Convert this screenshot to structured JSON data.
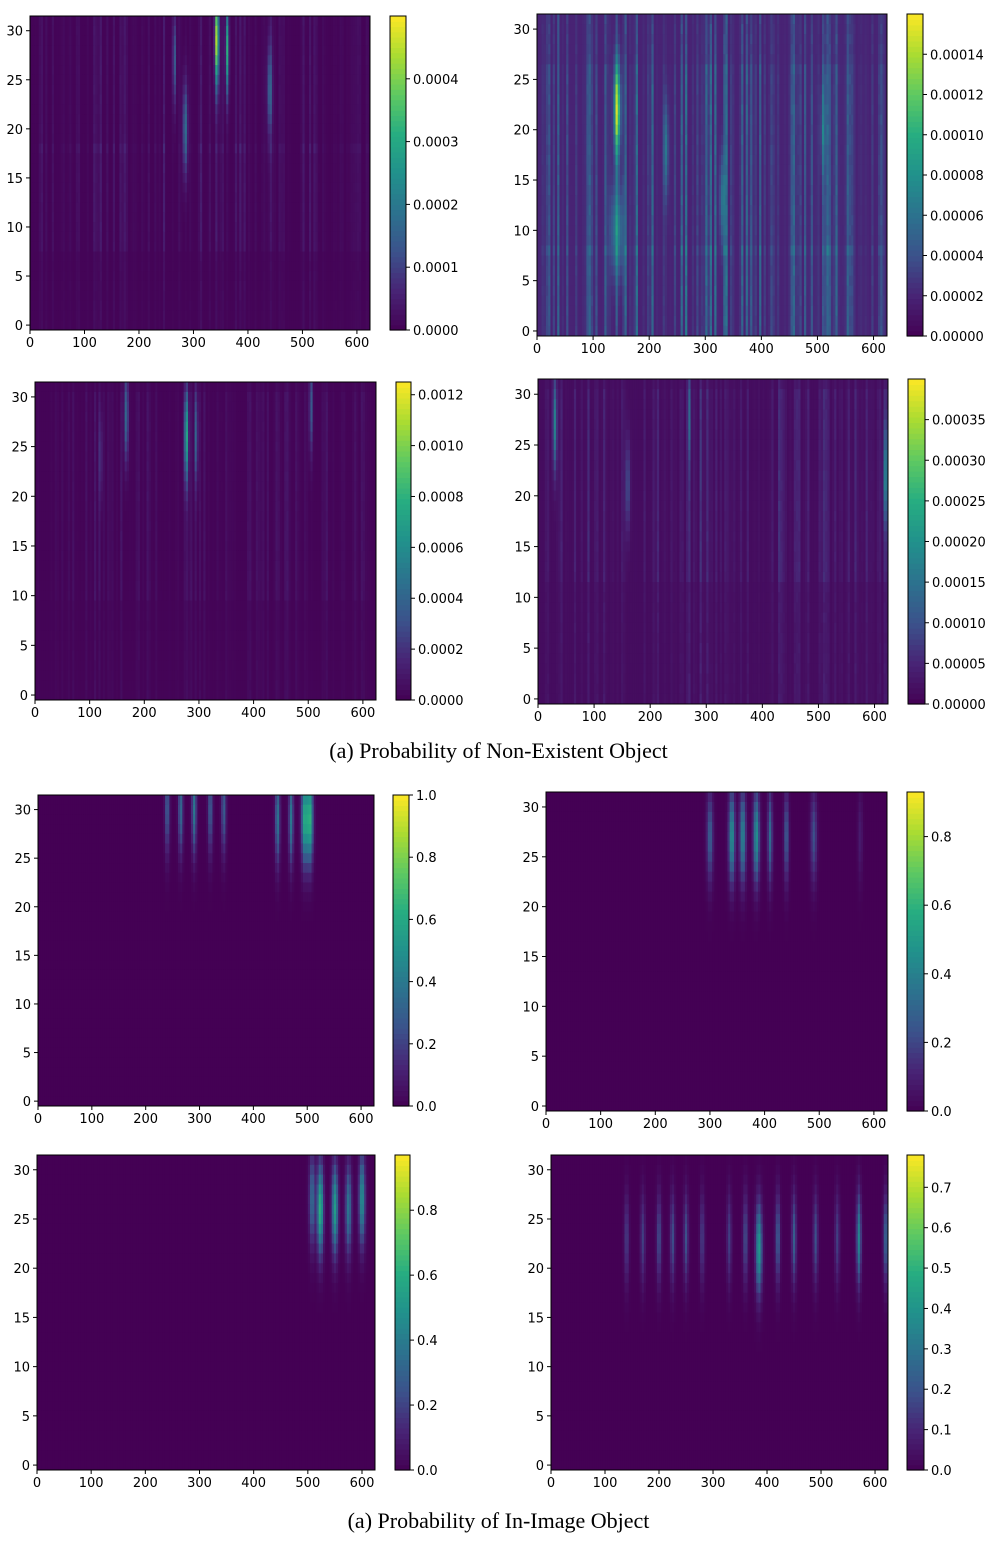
{
  "figure": {
    "captions": [
      "(a) Probability of Non-Existent Object",
      "(a) Probability of In-Image Object"
    ],
    "colormap": "viridis",
    "colors": [
      "#440154",
      "#3b528b",
      "#21918c",
      "#5ec962",
      "#fde725"
    ]
  },
  "chart_data": [
    {
      "type": "heatmap",
      "section": "(a) Probability of Non-Existent Object",
      "position": "top-left",
      "xlim": [
        0,
        624
      ],
      "ylim": [
        -0.5,
        31.5
      ],
      "xticks": [
        "0",
        "100",
        "200",
        "300",
        "400",
        "500",
        "600"
      ],
      "yticks": [
        "0",
        "5",
        "10",
        "15",
        "20",
        "25",
        "30"
      ],
      "vmin": 0,
      "vmax": 0.0005,
      "colorbar_ticks": [
        "0.0000",
        "0.0001",
        "0.0002",
        "0.0003",
        "0.0004"
      ],
      "colorbar_values": [
        0,
        0.0001,
        0.0002,
        0.0003,
        0.0004
      ],
      "base": 0.01,
      "noise": 0.05,
      "seed": 11,
      "bands": [
        [
          8,
          18,
          0.05
        ],
        [
          18,
          31,
          0.04
        ]
      ],
      "peaks": [
        [
          343,
          29,
          2.5,
          0.85
        ],
        [
          362,
          28,
          2,
          0.6
        ],
        [
          285,
          20,
          3,
          0.35
        ],
        [
          265,
          27,
          2,
          0.3
        ],
        [
          440,
          24,
          3,
          0.3
        ]
      ]
    },
    {
      "type": "heatmap",
      "section": "(a) Probability of Non-Existent Object",
      "position": "top-right",
      "xlim": [
        0,
        624
      ],
      "ylim": [
        -0.5,
        31.5
      ],
      "xticks": [
        "0",
        "100",
        "200",
        "300",
        "400",
        "500",
        "600"
      ],
      "yticks": [
        "0",
        "5",
        "10",
        "15",
        "20",
        "25",
        "30"
      ],
      "vmin": 0,
      "vmax": 0.00016,
      "colorbar_ticks": [
        "0.00000",
        "0.00002",
        "0.00004",
        "0.00006",
        "0.00008",
        "0.00010",
        "0.00012",
        "0.00014"
      ],
      "colorbar_values": [
        0,
        2e-05,
        4e-05,
        6e-05,
        8e-05,
        0.0001,
        0.00012,
        0.00014
      ],
      "base": 0.12,
      "noise": 0.2,
      "seed": 23,
      "bands": [
        [
          0,
          8,
          0.1
        ],
        [
          8,
          26,
          0.08
        ]
      ],
      "peaks": [
        [
          143,
          22,
          4,
          0.7
        ],
        [
          143,
          10,
          8,
          0.3
        ],
        [
          330,
          13,
          3,
          0.25
        ],
        [
          230,
          18,
          3,
          0.25
        ],
        [
          510,
          20,
          3,
          0.2
        ]
      ]
    },
    {
      "type": "heatmap",
      "section": "(a) Probability of Non-Existent Object",
      "position": "middle-left",
      "xlim": [
        0,
        624
      ],
      "ylim": [
        -0.5,
        31.5
      ],
      "xticks": [
        "0",
        "100",
        "200",
        "300",
        "400",
        "500",
        "600"
      ],
      "yticks": [
        "0",
        "5",
        "10",
        "15",
        "20",
        "25",
        "30"
      ],
      "vmin": 0,
      "vmax": 0.00125,
      "colorbar_ticks": [
        "0.0000",
        "0.0002",
        "0.0004",
        "0.0006",
        "0.0008",
        "0.0010",
        "0.0012"
      ],
      "colorbar_values": [
        0,
        0.0002,
        0.0004,
        0.0006,
        0.0008,
        0.001,
        0.0012
      ],
      "base": 0.01,
      "noise": 0.04,
      "seed": 37,
      "bands": [
        [
          10,
          30,
          0.03
        ]
      ],
      "peaks": [
        [
          167,
          28,
          2.5,
          0.35
        ],
        [
          277,
          26,
          2.5,
          0.55
        ],
        [
          295,
          26,
          2,
          0.3
        ],
        [
          505,
          29,
          2,
          0.3
        ],
        [
          120,
          24,
          2,
          0.15
        ]
      ]
    },
    {
      "type": "heatmap",
      "section": "(a) Probability of Non-Existent Object",
      "position": "middle-right",
      "xlim": [
        0,
        624
      ],
      "ylim": [
        -0.5,
        31.5
      ],
      "xticks": [
        "0",
        "100",
        "200",
        "300",
        "400",
        "500",
        "600"
      ],
      "yticks": [
        "0",
        "5",
        "10",
        "15",
        "20",
        "25",
        "30"
      ],
      "vmin": 0,
      "vmax": 0.0004,
      "colorbar_ticks": [
        "0.00000",
        "0.00005",
        "0.00010",
        "0.00015",
        "0.00020",
        "0.00025",
        "0.00030",
        "0.00035"
      ],
      "colorbar_values": [
        0,
        5e-05,
        0.0001,
        0.00015,
        0.0002,
        0.00025,
        0.0003,
        0.00035
      ],
      "base": 0.04,
      "noise": 0.09,
      "seed": 53,
      "bands": [
        [
          12,
          30,
          0.06
        ]
      ],
      "peaks": [
        [
          30,
          27,
          2.5,
          0.4
        ],
        [
          620,
          22,
          3,
          0.35
        ],
        [
          160,
          21,
          3,
          0.2
        ],
        [
          270,
          28,
          2,
          0.2
        ]
      ]
    },
    {
      "type": "heatmap",
      "section": "(a) Probability of In-Image Object",
      "position": "bottom-left-upper",
      "xlim": [
        0,
        624
      ],
      "ylim": [
        -0.5,
        31.5
      ],
      "xticks": [
        "0",
        "100",
        "200",
        "300",
        "400",
        "500",
        "600"
      ],
      "yticks": [
        "0",
        "5",
        "10",
        "15",
        "20",
        "25",
        "30"
      ],
      "vmin": 0,
      "vmax": 1.0,
      "colorbar_ticks": [
        "0.0",
        "0.2",
        "0.4",
        "0.6",
        "0.8",
        "1.0"
      ],
      "colorbar_values": [
        0,
        0.2,
        0.4,
        0.6,
        0.8,
        1.0
      ],
      "base": 0,
      "noise": 0,
      "seed": 71,
      "bands": [],
      "peaks": [
        [
          240,
          30,
          3,
          0.3
        ],
        [
          265,
          30,
          3,
          0.35
        ],
        [
          290,
          30,
          3,
          0.4
        ],
        [
          320,
          30,
          3,
          0.3
        ],
        [
          345,
          30,
          3,
          0.3
        ],
        [
          445,
          29,
          3,
          0.4
        ],
        [
          470,
          29,
          3,
          0.4
        ],
        [
          495,
          29,
          4,
          0.6
        ],
        [
          505,
          29,
          4,
          0.65
        ]
      ]
    },
    {
      "type": "heatmap",
      "section": "(a) Probability of In-Image Object",
      "position": "bottom-right-upper",
      "xlim": [
        0,
        624
      ],
      "ylim": [
        -0.5,
        31.5
      ],
      "xticks": [
        "0",
        "100",
        "200",
        "300",
        "400",
        "500",
        "600"
      ],
      "yticks": [
        "0",
        "5",
        "10",
        "15",
        "20",
        "25",
        "30"
      ],
      "vmin": 0,
      "vmax": 0.93,
      "colorbar_ticks": [
        "0.0",
        "0.2",
        "0.4",
        "0.6",
        "0.8"
      ],
      "colorbar_values": [
        0,
        0.2,
        0.4,
        0.6,
        0.8
      ],
      "base": 0,
      "noise": 0,
      "seed": 89,
      "bands": [],
      "peaks": [
        [
          300,
          27,
          4,
          0.3
        ],
        [
          340,
          27,
          4,
          0.5
        ],
        [
          360,
          27,
          4,
          0.45
        ],
        [
          385,
          27,
          4,
          0.5
        ],
        [
          410,
          27,
          3,
          0.35
        ],
        [
          440,
          27,
          3,
          0.3
        ],
        [
          490,
          27,
          4,
          0.25
        ],
        [
          575,
          27,
          3,
          0.1
        ]
      ]
    },
    {
      "type": "heatmap",
      "section": "(a) Probability of In-Image Object",
      "position": "bottom-left-lower",
      "xlim": [
        0,
        624
      ],
      "ylim": [
        -0.5,
        31.5
      ],
      "xticks": [
        "0",
        "100",
        "200",
        "300",
        "400",
        "500",
        "600"
      ],
      "yticks": [
        "0",
        "5",
        "10",
        "15",
        "20",
        "25",
        "30"
      ],
      "vmin": 0,
      "vmax": 0.97,
      "colorbar_ticks": [
        "0.0",
        "0.2",
        "0.4",
        "0.6",
        "0.8"
      ],
      "colorbar_values": [
        0,
        0.2,
        0.4,
        0.6,
        0.8
      ],
      "base": 0,
      "noise": 0,
      "seed": 97,
      "bands": [],
      "peaks": [
        [
          508,
          27,
          4,
          0.35
        ],
        [
          523,
          26,
          4,
          0.65
        ],
        [
          550,
          26,
          4,
          0.55
        ],
        [
          575,
          26,
          4,
          0.4
        ],
        [
          600,
          27,
          4,
          0.5
        ]
      ]
    },
    {
      "type": "heatmap",
      "section": "(a) Probability of In-Image Object",
      "position": "bottom-right-lower",
      "xlim": [
        0,
        624
      ],
      "ylim": [
        -0.5,
        31.5
      ],
      "xticks": [
        "0",
        "100",
        "200",
        "300",
        "400",
        "500",
        "600"
      ],
      "yticks": [
        "0",
        "5",
        "10",
        "15",
        "20",
        "25",
        "30"
      ],
      "vmin": 0,
      "vmax": 0.78,
      "colorbar_ticks": [
        "0.0",
        "0.1",
        "0.2",
        "0.3",
        "0.4",
        "0.5",
        "0.6",
        "0.7"
      ],
      "colorbar_values": [
        0,
        0.1,
        0.2,
        0.3,
        0.4,
        0.5,
        0.6,
        0.7
      ],
      "base": 0,
      "noise": 0,
      "seed": 113,
      "bands": [],
      "peaks": [
        [
          140,
          23,
          3,
          0.2
        ],
        [
          170,
          23,
          3,
          0.2
        ],
        [
          200,
          23,
          3,
          0.25
        ],
        [
          225,
          23,
          3,
          0.25
        ],
        [
          250,
          23,
          3,
          0.25
        ],
        [
          280,
          23,
          3,
          0.2
        ],
        [
          330,
          23,
          3,
          0.2
        ],
        [
          360,
          23,
          3,
          0.25
        ],
        [
          385,
          22,
          4,
          0.55
        ],
        [
          420,
          23,
          3,
          0.3
        ],
        [
          450,
          23,
          3,
          0.3
        ],
        [
          490,
          23,
          3,
          0.25
        ],
        [
          530,
          23,
          3,
          0.2
        ],
        [
          570,
          23,
          3,
          0.45
        ],
        [
          620,
          23,
          3,
          0.35
        ]
      ]
    }
  ]
}
